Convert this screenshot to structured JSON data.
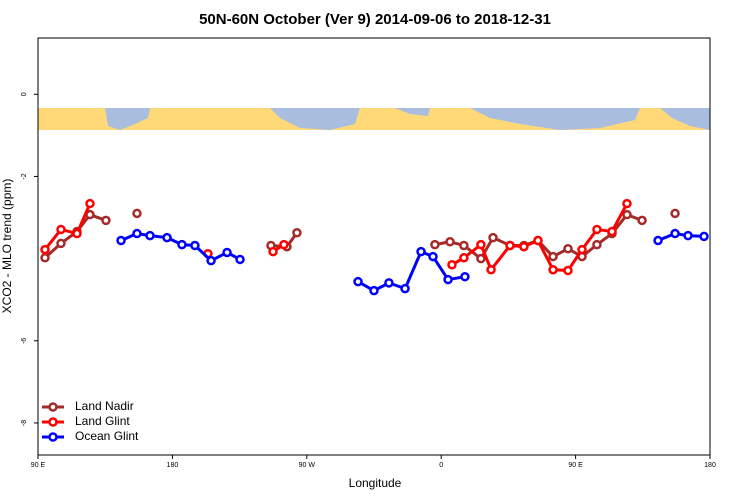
{
  "chart_data": {
    "type": "line",
    "title": "50N-60N October (Ver 9)   2014-09-06 to 2018-12-31",
    "x_label": "Longitude",
    "y_label": "XCO2 - MLO trend (ppm)",
    "xlim": [
      90,
      540
    ],
    "ylim": [
      -8.78,
      1.37
    ],
    "xticks": [
      {
        "value": 90,
        "label": "90 E"
      },
      {
        "value": 180,
        "label": "180"
      },
      {
        "value": 270,
        "label": "90 W"
      },
      {
        "value": 360,
        "label": "0"
      },
      {
        "value": 450,
        "label": "90 E"
      },
      {
        "value": 540,
        "label": "180"
      }
    ],
    "yticks": [
      -8,
      -6,
      -2,
      0
    ],
    "legend": "bottom-left",
    "series": [
      {
        "name": "Land Nadir",
        "color": "#a52a2a",
        "x": [
          94.7,
          105.4,
          116.1,
          124.8,
          135.5,
          null,
          156.3,
          null,
          246.0,
          256.7,
          263.4,
          null,
          355.8,
          365.9,
          375.2,
          386.6,
          394.7,
          406.1,
          415.4,
          424.8,
          434.9,
          444.9,
          454.3,
          464.3,
          474.4,
          484.4,
          494.5,
          null,
          516.6
        ],
        "values": [
          -3.98,
          -3.63,
          -3.34,
          -2.93,
          -3.07,
          null,
          -2.9,
          null,
          -3.68,
          -3.71,
          -3.37,
          null,
          -3.66,
          -3.59,
          -3.68,
          -4.0,
          -3.49,
          -3.68,
          -3.68,
          -3.56,
          -3.95,
          -3.76,
          -3.95,
          -3.66,
          -3.39,
          -2.93,
          -3.07,
          null,
          -2.9
        ]
      },
      {
        "name": "Land Glint",
        "color": "#ff0000",
        "x": [
          94.7,
          105.4,
          116.1,
          124.8,
          null,
          203.8,
          null,
          247.4,
          254.7,
          null,
          367.2,
          375.2,
          386.6,
          393.4,
          406.1,
          415.4,
          424.8,
          434.9,
          444.9,
          454.3,
          464.3,
          474.4,
          484.4
        ],
        "values": [
          -3.78,
          -3.29,
          -3.39,
          -2.66,
          null,
          -3.88,
          null,
          -3.83,
          -3.66,
          null,
          -4.15,
          -3.98,
          -3.66,
          -4.27,
          -3.68,
          -3.71,
          -3.56,
          -4.27,
          -4.29,
          -3.78,
          -3.29,
          -3.34,
          -2.66
        ]
      },
      {
        "name": "Ocean Glint",
        "color": "#0000ff",
        "x": [
          145.6,
          156.3,
          165.0,
          176.4,
          186.4,
          195.1,
          205.9,
          216.6,
          225.3,
          null,
          304.3,
          315.0,
          325.0,
          335.8,
          346.5,
          354.5,
          364.6,
          375.9,
          null,
          505.2,
          516.6,
          525.3,
          536.0
        ],
        "values": [
          -3.56,
          -3.39,
          -3.44,
          -3.49,
          -3.66,
          -3.68,
          -4.05,
          -3.85,
          -4.02,
          null,
          -4.56,
          -4.78,
          -4.59,
          -4.73,
          -3.83,
          -3.95,
          -4.51,
          -4.44,
          null,
          -3.56,
          -3.39,
          -3.44,
          -3.46
        ]
      }
    ]
  }
}
